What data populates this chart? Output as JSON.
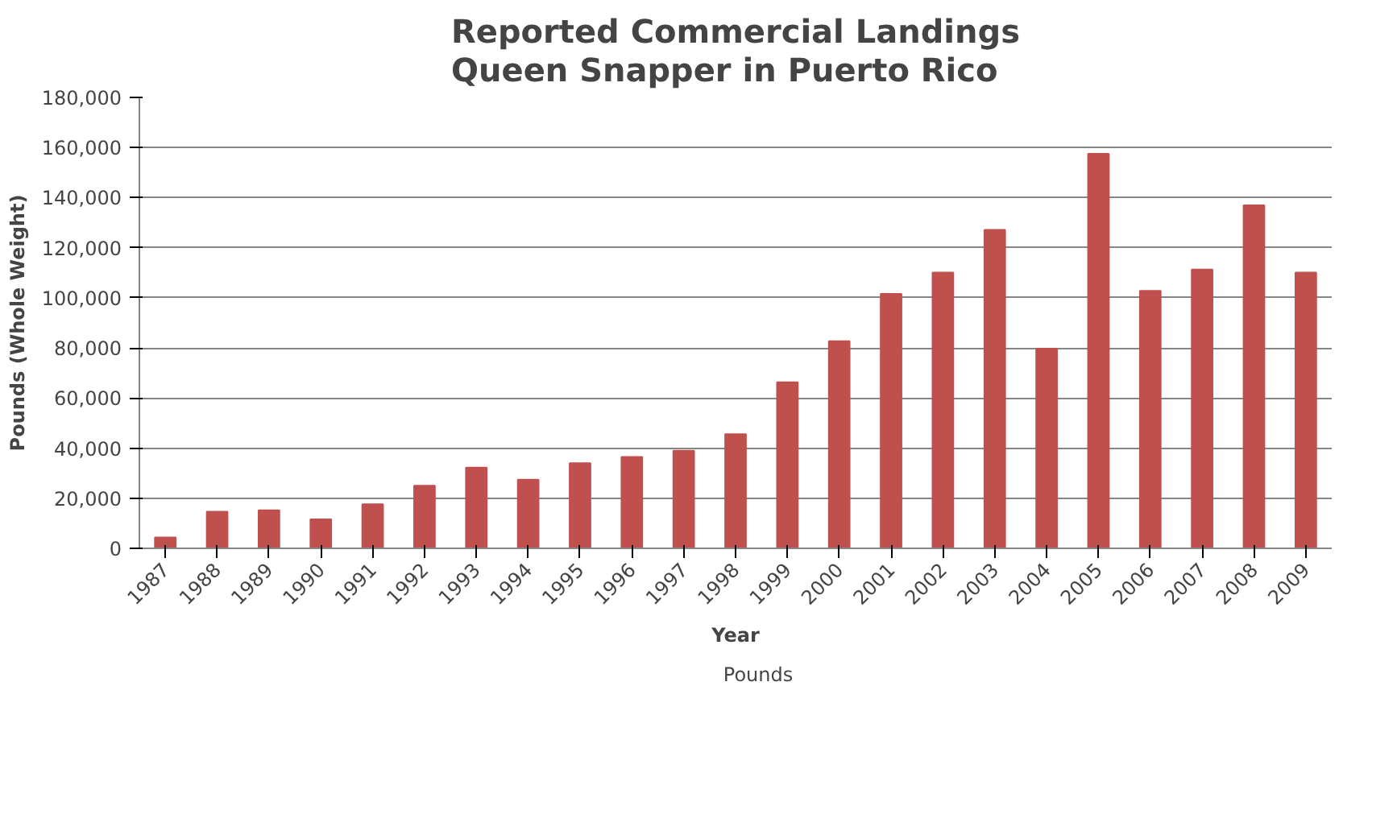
{
  "chart_data": {
    "type": "bar",
    "title": "Reported Commercial Landings\nQueen Snapper in Puerto Rico",
    "xlabel": "Year",
    "ylabel": "Pounds (Whole Weight)",
    "categories": [
      "1987",
      "1988",
      "1989",
      "1990",
      "1991",
      "1992",
      "1993",
      "1994",
      "1995",
      "1996",
      "1997",
      "1998",
      "1999",
      "2000",
      "2001",
      "2002",
      "2003",
      "2004",
      "2005",
      "2006",
      "2007",
      "2008",
      "2009"
    ],
    "series": [
      {
        "name": "Pounds",
        "color": "#c0504d",
        "values": [
          4300,
          14600,
          15200,
          11600,
          17600,
          25000,
          32200,
          27400,
          34000,
          36500,
          39000,
          45600,
          66300,
          82700,
          101600,
          110100,
          127100,
          79700,
          157500,
          102800,
          111300,
          136900,
          110100
        ]
      }
    ],
    "ylim": [
      0,
      180000
    ],
    "yticks": [
      {
        "value": 0,
        "label": "0"
      },
      {
        "value": 20000,
        "label": "20,000"
      },
      {
        "value": 40000,
        "label": "40,000"
      },
      {
        "value": 60000,
        "label": "60,000"
      },
      {
        "value": 80000,
        "label": "80,000"
      },
      {
        "value": 100000,
        "label": "100,000"
      },
      {
        "value": 120000,
        "label": "120,000"
      },
      {
        "value": 140000,
        "label": "140,000"
      },
      {
        "value": 160000,
        "label": "160,000"
      },
      {
        "value": 180000,
        "label": "180,000"
      }
    ],
    "grid": "y",
    "legend": "bottom"
  }
}
